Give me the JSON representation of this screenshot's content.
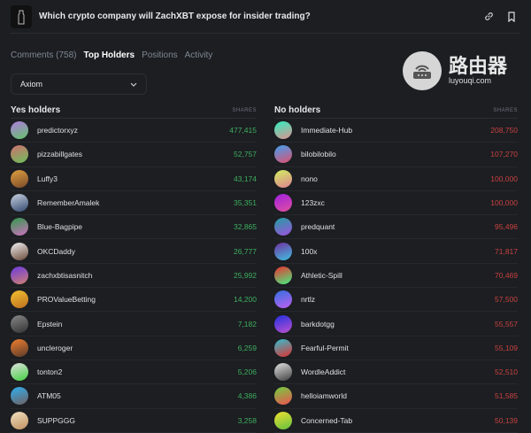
{
  "header": {
    "title": "Which crypto company will ZachXBT expose for insider trading?",
    "icons": [
      "link-icon",
      "bookmark-icon"
    ]
  },
  "tabs": [
    {
      "label": "Comments (758)",
      "active": false
    },
    {
      "label": "Top Holders",
      "active": true
    },
    {
      "label": "Positions",
      "active": false
    },
    {
      "label": "Activity",
      "active": false
    }
  ],
  "select": {
    "value": "Axiom"
  },
  "yes": {
    "title": "Yes holders",
    "shares_label": "SHARES",
    "color": "#3fae5e",
    "rows": [
      {
        "name": "predictorxyz",
        "shares": "477,415",
        "grad": [
          "#b07be0",
          "#62c46a"
        ]
      },
      {
        "name": "pizzabillgates",
        "shares": "52,757",
        "grad": [
          "#d07070",
          "#6cbf5a"
        ]
      },
      {
        "name": "Luffy3",
        "shares": "43,174",
        "grad": [
          "#e0a040",
          "#7a4a2a"
        ]
      },
      {
        "name": "RememberAmalek",
        "shares": "35,351",
        "grad": [
          "#c8d0e0",
          "#344a70"
        ]
      },
      {
        "name": "Blue-Bagpipe",
        "shares": "32,865",
        "grad": [
          "#2e9a4a",
          "#d070c0"
        ]
      },
      {
        "name": "OKCDaddy",
        "shares": "26,777",
        "grad": [
          "#f0f0f0",
          "#6a4a3a"
        ]
      },
      {
        "name": "zachxbtisasnitch",
        "shares": "25,992",
        "grad": [
          "#6a3ae0",
          "#d08070"
        ]
      },
      {
        "name": "PROValueBetting",
        "shares": "14,200",
        "grad": [
          "#f0c030",
          "#c07020"
        ]
      },
      {
        "name": "Epstein",
        "shares": "7,182",
        "grad": [
          "#888",
          "#333"
        ]
      },
      {
        "name": "uncleroger",
        "shares": "6,259",
        "grad": [
          "#f08030",
          "#5a3a2a"
        ]
      },
      {
        "name": "tonton2",
        "shares": "5,206",
        "grad": [
          "#e0e0e0",
          "#40d040"
        ]
      },
      {
        "name": "ATM05",
        "shares": "4,386",
        "grad": [
          "#30b0f0",
          "#706060"
        ]
      },
      {
        "name": "SUPPGGG",
        "shares": "3,258",
        "grad": [
          "#f0e0c0",
          "#c09060"
        ]
      }
    ]
  },
  "no": {
    "title": "No holders",
    "shares_label": "SHARES",
    "color": "#c8423f",
    "rows": [
      {
        "name": "Immediate-Hub",
        "shares": "208,750",
        "grad": [
          "#30f0c0",
          "#e09090"
        ]
      },
      {
        "name": "bilobilobilo",
        "shares": "107,270",
        "grad": [
          "#40a0f0",
          "#e05070"
        ]
      },
      {
        "name": "nono",
        "shares": "100,000",
        "grad": [
          "#d0f060",
          "#e08090"
        ]
      },
      {
        "name": "123zxc",
        "shares": "100,000",
        "grad": [
          "#a020e0",
          "#e050a0"
        ]
      },
      {
        "name": "predquant",
        "shares": "95,496",
        "grad": [
          "#20a0a0",
          "#a050e0"
        ]
      },
      {
        "name": "100x",
        "shares": "71,817",
        "grad": [
          "#7030a0",
          "#40c0e0"
        ]
      },
      {
        "name": "Athletic-Spill",
        "shares": "70,469",
        "grad": [
          "#f03030",
          "#40f080"
        ]
      },
      {
        "name": "nrtlz",
        "shares": "57,500",
        "grad": [
          "#3070e0",
          "#c060f0"
        ]
      },
      {
        "name": "barkdotgg",
        "shares": "55,557",
        "grad": [
          "#2030e0",
          "#c050d0"
        ]
      },
      {
        "name": "Fearful-Permit",
        "shares": "55,109",
        "grad": [
          "#30c0d0",
          "#e03030"
        ]
      },
      {
        "name": "WordleAddict",
        "shares": "52,510",
        "grad": [
          "#e0e0e0",
          "#404040"
        ]
      },
      {
        "name": "helloiamworld",
        "shares": "51,585",
        "grad": [
          "#70d040",
          "#f05050"
        ]
      },
      {
        "name": "Concerned-Tab",
        "shares": "50,139",
        "grad": [
          "#f0e030",
          "#60c040"
        ]
      }
    ]
  },
  "watermark": {
    "cn": "路由器",
    "url": "luyouqi.com"
  }
}
